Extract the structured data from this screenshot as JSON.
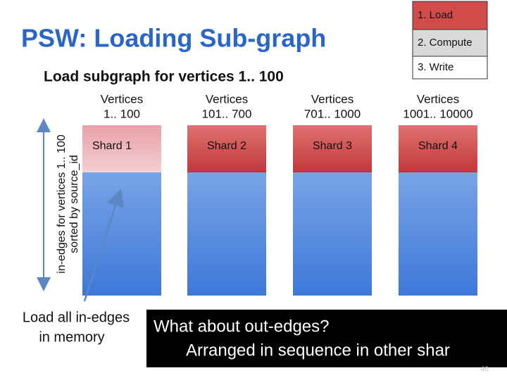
{
  "title": "PSW: Loading Sub-graph",
  "subtitle": "Load subgraph for vertices 1.. 100",
  "steps": [
    "1. Load",
    "2. Compute",
    "3. Write"
  ],
  "columns": [
    {
      "header": [
        "Vertices",
        "1.. 100"
      ],
      "shard": "Shard 1"
    },
    {
      "header": [
        "Vertices",
        "101.. 700"
      ],
      "shard": "Shard 2"
    },
    {
      "header": [
        "Vertices",
        "701.. 1000"
      ],
      "shard": "Shard 3"
    },
    {
      "header": [
        "Vertices",
        "1001.. 10000"
      ],
      "shard": "Shard 4"
    }
  ],
  "axis_label": [
    "in-edges for vertices 1.. 100",
    "sorted by source_id"
  ],
  "note": [
    "Load all in-edges",
    "in memory"
  ],
  "callout": [
    "What about out-edges?",
    "Arranged in sequence in other shar"
  ],
  "page_number": "46"
}
